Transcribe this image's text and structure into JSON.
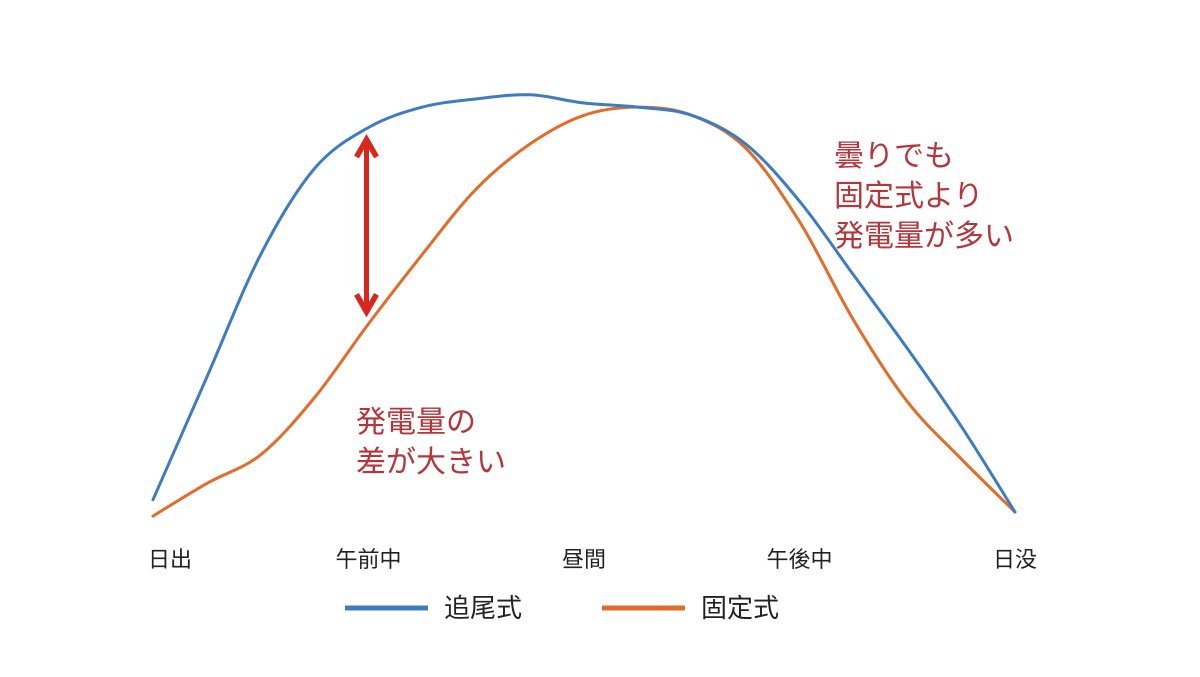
{
  "chart_data": {
    "type": "line",
    "title": "",
    "xlabel": "",
    "ylabel": "",
    "categories": [
      "日出",
      "午前中",
      "昼間",
      "午後中",
      "日没"
    ],
    "xlim": [
      0,
      4
    ],
    "ylim": [
      0,
      1
    ],
    "grid": false,
    "legend_position": "bottom",
    "series": [
      {
        "name": "追尾式",
        "color": "#3d7cc0",
        "points": [
          [
            0.0,
            0.03
          ],
          [
            0.25,
            0.33
          ],
          [
            0.5,
            0.63
          ],
          [
            0.75,
            0.84
          ],
          [
            1.0,
            0.94
          ],
          [
            1.25,
            0.99
          ],
          [
            1.5,
            1.01
          ],
          [
            1.75,
            1.02
          ],
          [
            2.0,
            1.0
          ],
          [
            2.25,
            0.99
          ],
          [
            2.5,
            0.97
          ],
          [
            2.75,
            0.9
          ],
          [
            3.0,
            0.76
          ],
          [
            3.25,
            0.58
          ],
          [
            3.5,
            0.4
          ],
          [
            3.75,
            0.21
          ],
          [
            4.0,
            0.0
          ]
        ]
      },
      {
        "name": "固定式",
        "color": "#e36c2a",
        "points": [
          [
            0.0,
            -0.01
          ],
          [
            0.25,
            0.07
          ],
          [
            0.5,
            0.14
          ],
          [
            0.75,
            0.28
          ],
          [
            1.0,
            0.46
          ],
          [
            1.25,
            0.63
          ],
          [
            1.5,
            0.79
          ],
          [
            1.75,
            0.9
          ],
          [
            2.0,
            0.97
          ],
          [
            2.25,
            0.99
          ],
          [
            2.5,
            0.97
          ],
          [
            2.75,
            0.89
          ],
          [
            3.0,
            0.71
          ],
          [
            3.25,
            0.47
          ],
          [
            3.5,
            0.27
          ],
          [
            3.75,
            0.13
          ],
          [
            4.0,
            0.0
          ]
        ]
      }
    ],
    "annotations": [
      {
        "text_lines": [
          "発電量の",
          "差が大きい"
        ],
        "color": "#b5353a"
      },
      {
        "text_lines": [
          "曇りでも",
          "固定式より",
          "発電量が多い"
        ],
        "color": "#b5353a"
      }
    ],
    "arrow": {
      "color": "#d9271e",
      "x": 1.0
    }
  }
}
